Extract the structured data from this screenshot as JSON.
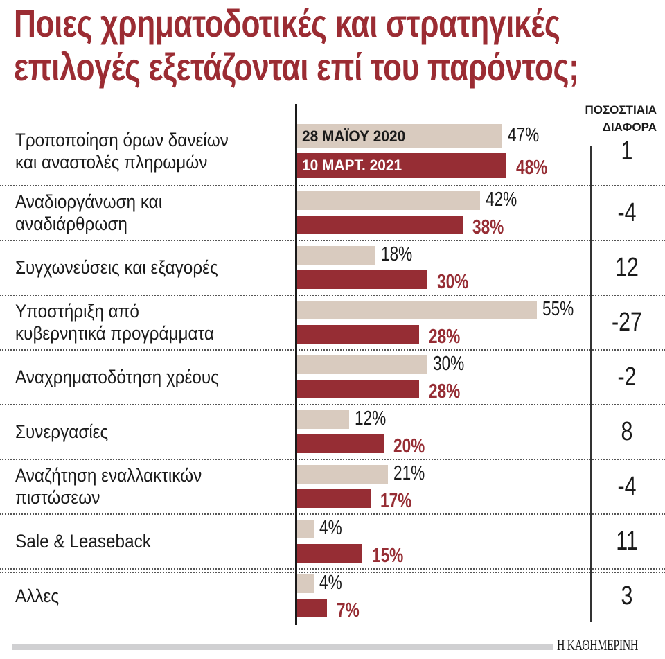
{
  "title": "Ποιες χρηματοδοτικές και στρατηγικές επιλογές εξετάζονται επί του παρόντος;",
  "title_lines": [
    "Ποιες χρηματοδοτικές και στρατηγικές",
    "επιλογές εξετάζονται επί του παρόντος;"
  ],
  "diff_header": [
    "ΠΟΣΟΣΤΙΑΙΑ",
    "ΔΙΑΦΟΡΑ"
  ],
  "source": "Η ΚΑΘΗΜΕΡΙΝΗ",
  "colors": {
    "title": "#9b2c33",
    "series_2020": "#d9cbbf",
    "series_2021": "#962d34",
    "footer_bar": "#d0d0d2"
  },
  "chart_data": {
    "type": "bar",
    "orientation": "horizontal",
    "title": "Ποιες χρηματοδοτικές και στρατηγικές επιλογές εξετάζονται επί του παρόντος;",
    "categories": [
      "Τροποποίηση όρων δανείων και αναστολές πληρωμών",
      "Αναδιοργάνωση και αναδιάρθρωση",
      "Συγχωνεύσεις και εξαγορές",
      "Υποστήριξη από κυβερνητικά προγράμματα",
      "Αναχρηματοδότηση χρέους",
      "Συνεργασίες",
      "Αναζήτηση εναλλακτικών πιστώσεων",
      "Sale & Leaseback",
      "Αλλες"
    ],
    "category_lines": [
      [
        "Τροποποίηση όρων δανείων",
        "και αναστολές πληρωμών"
      ],
      [
        "Αναδιοργάνωση και",
        "αναδιάρθρωση"
      ],
      [
        "Συγχωνεύσεις και εξαγορές"
      ],
      [
        "Υποστήριξη από",
        "κυβερνητικά προγράμματα"
      ],
      [
        "Αναχρηματοδότηση χρέους"
      ],
      [
        "Συνεργασίες"
      ],
      [
        "Αναζήτηση εναλλακτικών",
        "πιστώσεων"
      ],
      [
        "Sale & Leaseback"
      ],
      [
        "Αλλες"
      ]
    ],
    "series": [
      {
        "name": "28 ΜΑΪΟΥ 2020",
        "values": [
          47,
          42,
          18,
          55,
          30,
          12,
          21,
          4,
          4
        ]
      },
      {
        "name": "10 ΜΑΡΤ. 2021",
        "values": [
          48,
          38,
          30,
          28,
          28,
          20,
          17,
          15,
          7
        ]
      }
    ],
    "value_labels": [
      [
        "47%",
        "42%",
        "18%",
        "55%",
        "30%",
        "12%",
        "21%",
        "4%",
        "4%"
      ],
      [
        "48%",
        "38%",
        "30%",
        "28%",
        "28%",
        "20%",
        "17%",
        "15%",
        "7%"
      ]
    ],
    "differences": [
      "1",
      "-4",
      "12",
      "-27",
      "-2",
      "8",
      "-4",
      "11",
      "3"
    ],
    "unit": "%",
    "xlim": [
      0,
      55
    ],
    "grid": false,
    "legend": "inside-first-bars"
  }
}
